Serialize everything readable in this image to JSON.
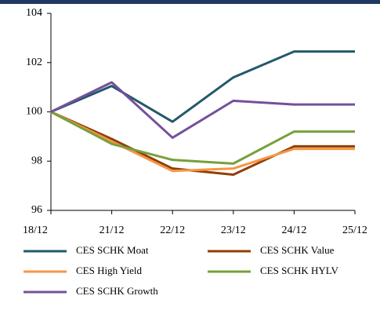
{
  "chart_data": {
    "type": "line",
    "categories": [
      "18/12",
      "21/12",
      "22/12",
      "23/12",
      "24/12",
      "25/12"
    ],
    "series": [
      {
        "name": "CES SCHK Moat",
        "color": "#23596a",
        "values": [
          100,
          101.05,
          99.6,
          101.4,
          102.45,
          102.45
        ]
      },
      {
        "name": "CES SCHK Value",
        "color": "#8e4008",
        "values": [
          100,
          98.9,
          97.7,
          97.45,
          98.6,
          98.6
        ]
      },
      {
        "name": "CES High Yield",
        "color": "#f79646",
        "values": [
          100,
          98.8,
          97.6,
          97.7,
          98.5,
          98.5
        ]
      },
      {
        "name": "CES SCHK HYLV",
        "color": "#77a03c",
        "values": [
          100,
          98.7,
          98.05,
          97.9,
          99.2,
          99.2
        ]
      },
      {
        "name": "CES SCHK Growth",
        "color": "#74519a",
        "values": [
          100,
          101.2,
          98.95,
          100.45,
          100.3,
          100.3
        ]
      }
    ],
    "ylim": [
      96,
      104
    ],
    "yticks": [
      96,
      98,
      100,
      102,
      104
    ],
    "grid": false
  }
}
